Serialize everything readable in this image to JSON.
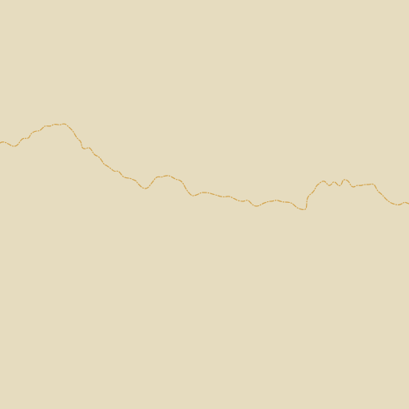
{
  "map": {
    "colors": {
      "land": "#E6DCBF",
      "boundary": "#D2A24A"
    },
    "features": [
      {
        "type": "boundary",
        "style": "dash-dot"
      }
    ]
  }
}
